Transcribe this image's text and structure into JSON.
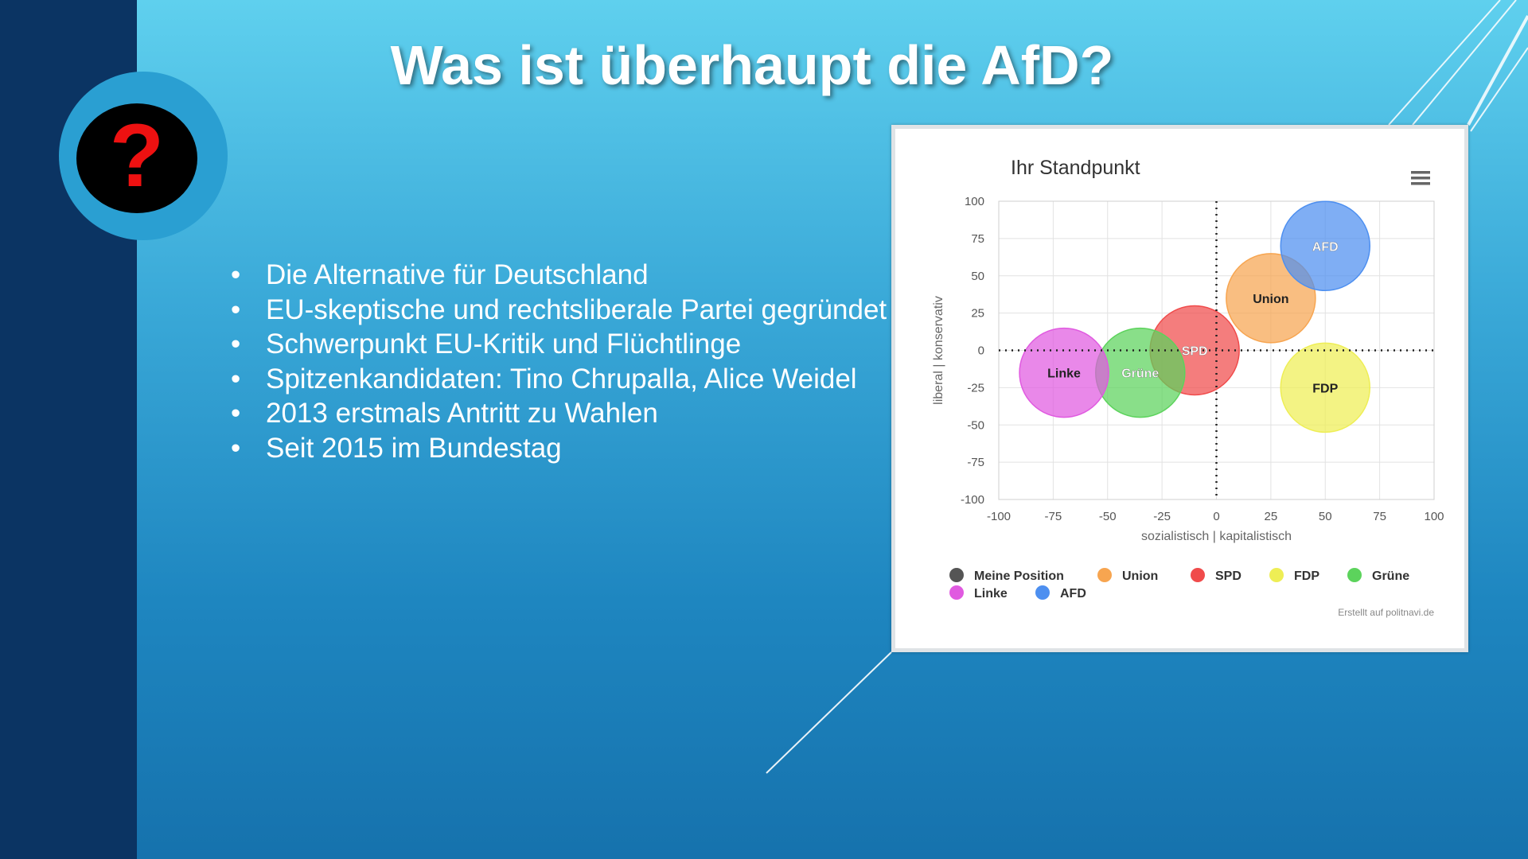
{
  "slide": {
    "title": "Was ist überhaupt die AfD?",
    "question_mark": "?",
    "bullets": [
      "Die Alternative für Deutschland",
      "EU-skeptische und rechtsliberale Partei gegründet",
      "Schwerpunkt EU-Kritik und Flüchtlinge",
      "Spitzenkandidaten: Tino Chrupalla, Alice Weidel",
      "2013 erstmals Antritt zu Wahlen",
      "Seit 2015 im Bundestag"
    ],
    "colors": {
      "sidebar": "#0b3463",
      "ring": "#2a9fd2",
      "question": "#e11111"
    },
    "icons": {
      "question": "question-mark-icon",
      "menu": "hamburger-menu-icon"
    }
  },
  "chart_data": {
    "type": "scatter",
    "title": "Ihr Standpunkt",
    "xlabel": "sozialistisch | kapitalistisch",
    "ylabel": "liberal | konservativ",
    "xlim": [
      -100,
      100
    ],
    "ylim": [
      -100,
      100
    ],
    "xticks": [
      "-100",
      "-75",
      "-50",
      "-25",
      "0",
      "25",
      "50",
      "75",
      "100"
    ],
    "yticks": [
      "100",
      "75",
      "50",
      "25",
      "0",
      "-25",
      "-50",
      "-75",
      "-100"
    ],
    "grid": true,
    "legend_position": "bottom",
    "credit": "Erstellt auf politnavi.de",
    "series": [
      {
        "name": "Meine Position",
        "color": "#555555",
        "points": []
      },
      {
        "name": "Union",
        "color": "#f7a550",
        "points": [
          {
            "x": 25,
            "y": 35,
            "label": "Union"
          }
        ]
      },
      {
        "name": "SPD",
        "color": "#f04b4b",
        "points": [
          {
            "x": -10,
            "y": 0,
            "label": "SPD"
          }
        ]
      },
      {
        "name": "FDP",
        "color": "#eeee55",
        "points": [
          {
            "x": 50,
            "y": -25,
            "label": "FDP"
          }
        ]
      },
      {
        "name": "Grüne",
        "color": "#5cd35c",
        "points": [
          {
            "x": -35,
            "y": -15,
            "label": "Grüne"
          }
        ]
      },
      {
        "name": "Linke",
        "color": "#e05ae0",
        "points": [
          {
            "x": -70,
            "y": -15,
            "label": "Linke"
          }
        ]
      },
      {
        "name": "AFD",
        "color": "#4d8ff0",
        "points": [
          {
            "x": 50,
            "y": 70,
            "label": "AFD"
          }
        ]
      }
    ]
  }
}
